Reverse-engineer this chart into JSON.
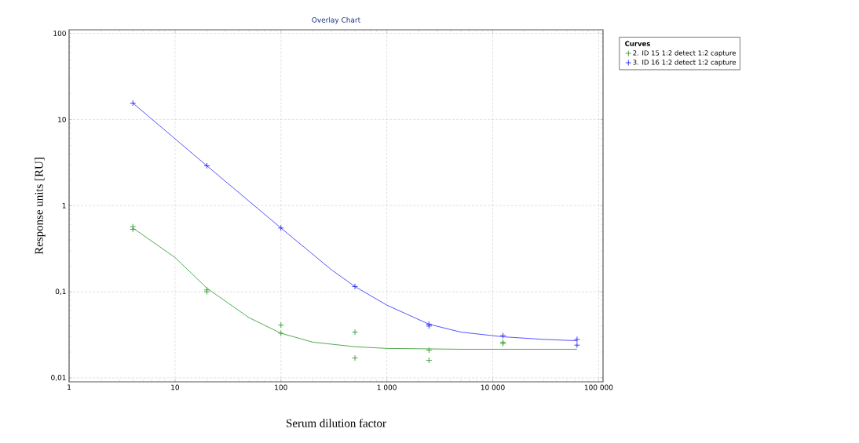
{
  "chart_data": {
    "type": "scatter",
    "title": "Overlay Chart",
    "xlabel": "Serum dilution factor",
    "ylabel": "Response units [RU]",
    "legend_title": "Curves",
    "log": "xy",
    "grid": true,
    "legend": "top right",
    "xlim": [
      1,
      110000
    ],
    "ylim": [
      0.009,
      110
    ],
    "xticks": [
      1,
      10,
      100,
      {
        "value": 1000,
        "label": "1 000"
      },
      {
        "value": 10000,
        "label": "10 000"
      },
      {
        "value": 100000,
        "label": "100 000"
      }
    ],
    "yticks": [
      {
        "value": 0.01,
        "label": "0,01"
      },
      {
        "value": 0.1,
        "label": "0,1"
      },
      1,
      10,
      100
    ],
    "series": [
      {
        "name": "2. ID 15 1:2 detect 1:2 capture",
        "color": "#2e9b2e",
        "marker": "cross",
        "x": [
          4,
          4,
          20,
          20,
          100,
          100,
          500,
          500,
          2500,
          2500,
          12500,
          12500
        ],
        "values": [
          0.57,
          0.53,
          0.105,
          0.1,
          0.041,
          0.033,
          0.034,
          0.017,
          0.021,
          0.016,
          0.026,
          0.025
        ]
      },
      {
        "name": "3. ID 16 1:2 detect 1:2 capture",
        "color": "#2828f0",
        "marker": "cross",
        "x": [
          4,
          20,
          100,
          500,
          2500,
          2500,
          12500,
          62500,
          62500
        ],
        "values": [
          15.5,
          2.9,
          0.55,
          0.115,
          0.042,
          0.04,
          0.031,
          0.028,
          0.024
        ]
      },
      {
        "type": "line",
        "color": "#3fa03f",
        "marker": "none",
        "x": [
          4,
          10,
          20,
          50,
          100,
          200,
          500,
          1000,
          5000,
          62500
        ],
        "values": [
          0.55,
          0.25,
          0.11,
          0.05,
          0.033,
          0.026,
          0.023,
          0.022,
          0.0215,
          0.0215
        ]
      },
      {
        "type": "line",
        "color": "#4040ff",
        "marker": "none",
        "x": [
          4,
          20,
          100,
          300,
          500,
          1000,
          2500,
          5000,
          12500,
          30000,
          62500
        ],
        "values": [
          15.5,
          2.9,
          0.55,
          0.18,
          0.115,
          0.07,
          0.042,
          0.034,
          0.03,
          0.028,
          0.027
        ]
      }
    ]
  }
}
